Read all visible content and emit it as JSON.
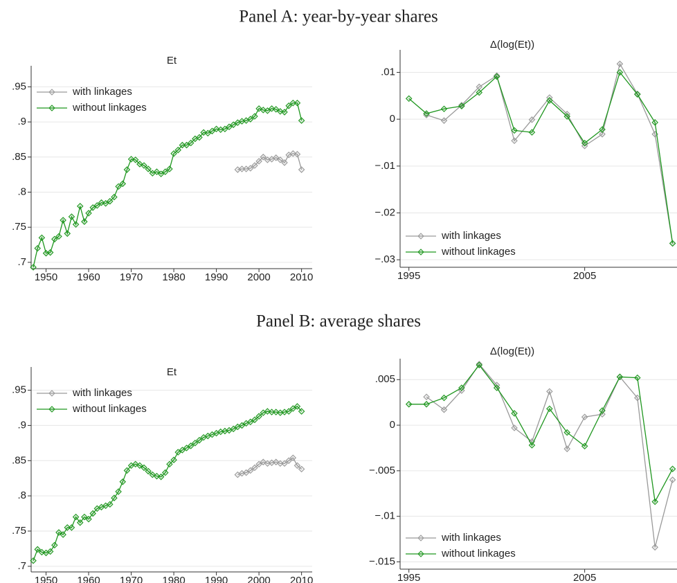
{
  "panel_titles": [
    "Panel A: year-by-year shares",
    "Panel B: average shares"
  ],
  "chart_data": [
    {
      "type": "line",
      "title": "Et",
      "x": [
        1947,
        1948,
        1949,
        1950,
        1951,
        1952,
        1953,
        1954,
        1955,
        1956,
        1957,
        1958,
        1959,
        1960,
        1961,
        1962,
        1963,
        1964,
        1965,
        1966,
        1967,
        1968,
        1969,
        1970,
        1971,
        1972,
        1973,
        1974,
        1975,
        1976,
        1977,
        1978,
        1979,
        1980,
        1981,
        1982,
        1983,
        1984,
        1985,
        1986,
        1987,
        1988,
        1989,
        1990,
        1991,
        1992,
        1993,
        1994,
        1995,
        1996,
        1997,
        1998,
        1999,
        2000,
        2001,
        2002,
        2003,
        2004,
        2005,
        2006,
        2007,
        2008,
        2009,
        2010
      ],
      "series": [
        {
          "name": "with linkages",
          "color": "#999999",
          "values": [
            null,
            null,
            null,
            null,
            null,
            null,
            null,
            null,
            null,
            null,
            null,
            null,
            null,
            null,
            null,
            null,
            null,
            null,
            null,
            null,
            null,
            null,
            null,
            null,
            null,
            null,
            null,
            null,
            null,
            null,
            null,
            null,
            null,
            null,
            null,
            null,
            null,
            null,
            null,
            null,
            null,
            null,
            null,
            null,
            null,
            null,
            null,
            null,
            0.832,
            0.833,
            0.833,
            0.834,
            0.838,
            0.844,
            0.85,
            0.846,
            0.847,
            0.849,
            0.846,
            0.842,
            0.853,
            0.855,
            0.854,
            0.832
          ]
        },
        {
          "name": "without linkages",
          "color": "#1e961e",
          "values": [
            0.693,
            0.72,
            0.735,
            0.713,
            0.714,
            0.733,
            0.737,
            0.76,
            0.741,
            0.765,
            0.754,
            0.78,
            0.758,
            0.77,
            0.778,
            0.781,
            0.785,
            0.784,
            0.787,
            0.793,
            0.808,
            0.812,
            0.832,
            0.847,
            0.846,
            0.84,
            0.838,
            0.833,
            0.827,
            0.829,
            0.826,
            0.829,
            0.833,
            0.855,
            0.86,
            0.867,
            0.867,
            0.87,
            0.876,
            0.878,
            0.885,
            0.884,
            0.887,
            0.89,
            0.889,
            0.89,
            0.893,
            0.896,
            0.899,
            0.901,
            0.902,
            0.904,
            0.908,
            0.919,
            0.917,
            0.916,
            0.919,
            0.918,
            0.915,
            0.914,
            0.923,
            0.927,
            0.927,
            0.902
          ]
        }
      ],
      "xlim": [
        1946.5,
        2012.5
      ],
      "xticks": [
        1950,
        1960,
        1970,
        1980,
        1990,
        2000,
        2010
      ],
      "ylim": [
        0.691,
        0.98
      ],
      "yticks": [
        {
          "value": 0.7,
          "label": ".7"
        },
        {
          "value": 0.75,
          "label": ".75"
        },
        {
          "value": 0.8,
          "label": ".8"
        },
        {
          "value": 0.85,
          "label": ".85"
        },
        {
          "value": 0.9,
          "label": ".9"
        },
        {
          "value": 0.95,
          "label": ".95"
        }
      ],
      "grid": true,
      "legend": "upper left"
    },
    {
      "type": "line",
      "title": "Δ(log(Et))",
      "x": [
        1995,
        1996,
        1997,
        1998,
        1999,
        2000,
        2001,
        2002,
        2003,
        2004,
        2005,
        2006,
        2007,
        2008,
        2009,
        2010
      ],
      "series": [
        {
          "name": "with linkages",
          "color": "#999999",
          "values": [
            null,
            0.0009,
            -0.0003,
            0.003,
            0.0069,
            0.0093,
            -0.0046,
            -0.0001,
            0.0046,
            0.0011,
            -0.0057,
            -0.0032,
            0.0118,
            0.0054,
            -0.0032,
            -0.0265
          ]
        },
        {
          "name": "without linkages",
          "color": "#1e961e",
          "values": [
            0.0044,
            0.0012,
            0.0022,
            0.0028,
            0.0057,
            0.0091,
            -0.0024,
            -0.0028,
            0.004,
            0.0006,
            -0.0051,
            -0.0022,
            0.01,
            0.0053,
            -0.0007,
            -0.0265
          ]
        }
      ],
      "xlim": [
        1994.5,
        2011
      ],
      "xticks": [
        1995,
        2005
      ],
      "ylim": [
        -0.0316,
        0.0148
      ],
      "yticks": [
        {
          "value": -0.03,
          "label": "−.03"
        },
        {
          "value": -0.02,
          "label": "−.02"
        },
        {
          "value": -0.01,
          "label": "−.01"
        },
        0,
        {
          "value": 0.01,
          "label": ".01"
        }
      ],
      "grid": true,
      "legend": "lower left"
    },
    {
      "type": "line",
      "title": "Et",
      "x": [
        1947,
        1948,
        1949,
        1950,
        1951,
        1952,
        1953,
        1954,
        1955,
        1956,
        1957,
        1958,
        1959,
        1960,
        1961,
        1962,
        1963,
        1964,
        1965,
        1966,
        1967,
        1968,
        1969,
        1970,
        1971,
        1972,
        1973,
        1974,
        1975,
        1976,
        1977,
        1978,
        1979,
        1980,
        1981,
        1982,
        1983,
        1984,
        1985,
        1986,
        1987,
        1988,
        1989,
        1990,
        1991,
        1992,
        1993,
        1994,
        1995,
        1996,
        1997,
        1998,
        1999,
        2000,
        2001,
        2002,
        2003,
        2004,
        2005,
        2006,
        2007,
        2008,
        2009,
        2010
      ],
      "series": [
        {
          "name": "with linkages",
          "color": "#999999",
          "values": [
            null,
            null,
            null,
            null,
            null,
            null,
            null,
            null,
            null,
            null,
            null,
            null,
            null,
            null,
            null,
            null,
            null,
            null,
            null,
            null,
            null,
            null,
            null,
            null,
            null,
            null,
            null,
            null,
            null,
            null,
            null,
            null,
            null,
            null,
            null,
            null,
            null,
            null,
            null,
            null,
            null,
            null,
            null,
            null,
            null,
            null,
            null,
            null,
            0.83,
            0.832,
            0.833,
            0.836,
            0.84,
            0.845,
            0.848,
            0.846,
            0.847,
            0.848,
            0.846,
            0.846,
            0.85,
            0.854,
            0.843,
            0.838
          ]
        },
        {
          "name": "without linkages",
          "color": "#1e961e",
          "values": [
            0.708,
            0.724,
            0.72,
            0.719,
            0.721,
            0.73,
            0.748,
            0.745,
            0.755,
            0.755,
            0.77,
            0.762,
            0.77,
            0.767,
            0.775,
            0.782,
            0.784,
            0.786,
            0.788,
            0.797,
            0.806,
            0.82,
            0.836,
            0.843,
            0.845,
            0.843,
            0.84,
            0.835,
            0.83,
            0.828,
            0.827,
            0.833,
            0.845,
            0.851,
            0.862,
            0.865,
            0.868,
            0.871,
            0.875,
            0.879,
            0.883,
            0.885,
            0.887,
            0.889,
            0.891,
            0.892,
            0.893,
            0.895,
            0.898,
            0.9,
            0.903,
            0.905,
            0.908,
            0.913,
            0.918,
            0.92,
            0.919,
            0.919,
            0.918,
            0.919,
            0.92,
            0.924,
            0.927,
            0.92
          ]
        }
      ],
      "xlim": [
        1946.5,
        2012.5
      ],
      "xticks": [
        1950,
        1960,
        1970,
        1980,
        1990,
        2000,
        2010
      ],
      "ylim": [
        0.692,
        0.983
      ],
      "yticks": [
        {
          "value": 0.7,
          "label": ".7"
        },
        {
          "value": 0.75,
          "label": ".75"
        },
        {
          "value": 0.8,
          "label": ".8"
        },
        {
          "value": 0.85,
          "label": ".85"
        },
        {
          "value": 0.9,
          "label": ".9"
        },
        {
          "value": 0.95,
          "label": ".95"
        }
      ],
      "grid": true,
      "legend": "upper left"
    },
    {
      "type": "line",
      "title": "Δ(log(Et))",
      "x": [
        1995,
        1996,
        1997,
        1998,
        1999,
        2000,
        2001,
        2002,
        2003,
        2004,
        2005,
        2006,
        2007,
        2008,
        2009,
        2010
      ],
      "series": [
        {
          "name": "with linkages",
          "color": "#999999",
          "values": [
            null,
            0.0031,
            0.0017,
            0.0038,
            0.0067,
            0.0044,
            -0.0003,
            -0.0018,
            0.0037,
            -0.0026,
            0.0009,
            0.0012,
            0.0053,
            0.003,
            -0.0134,
            -0.006
          ]
        },
        {
          "name": "without linkages",
          "color": "#1e961e",
          "values": [
            0.0023,
            0.0023,
            0.003,
            0.0041,
            0.0066,
            0.0041,
            0.0013,
            -0.0022,
            0.0018,
            -0.0008,
            -0.0023,
            0.0016,
            0.0053,
            0.0052,
            -0.0084,
            -0.0048
          ]
        }
      ],
      "xlim": [
        1994.5,
        2011
      ],
      "xticks": [
        1995,
        2005
      ],
      "ylim": [
        -0.0158,
        0.0073
      ],
      "yticks": [
        {
          "value": -0.015,
          "label": "−.015"
        },
        {
          "value": -0.01,
          "label": "−.01"
        },
        {
          "value": -0.005,
          "label": "−.005"
        },
        0,
        {
          "value": 0.005,
          "label": ".005"
        }
      ],
      "grid": true,
      "legend": "lower left"
    }
  ]
}
